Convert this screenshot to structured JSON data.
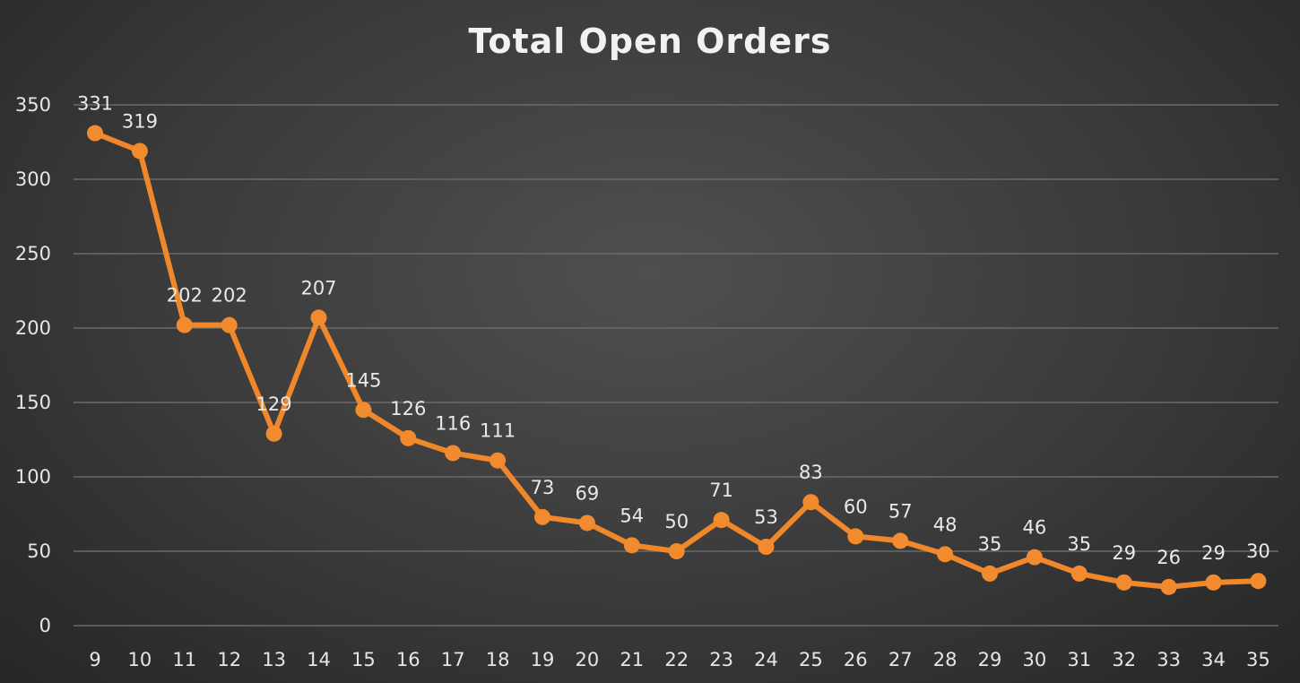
{
  "chart_data": {
    "type": "line",
    "title": "Total Open Orders",
    "xlabel": "",
    "ylabel": "",
    "categories": [
      "9",
      "10",
      "11",
      "12",
      "13",
      "14",
      "15",
      "16",
      "17",
      "18",
      "19",
      "20",
      "21",
      "22",
      "23",
      "24",
      "25",
      "26",
      "27",
      "28",
      "29",
      "30",
      "31",
      "32",
      "33",
      "34",
      "35"
    ],
    "series": [
      {
        "values": [
          331,
          319,
          202,
          202,
          129,
          207,
          145,
          126,
          116,
          111,
          73,
          69,
          54,
          50,
          71,
          53,
          83,
          60,
          57,
          48,
          35,
          46,
          35,
          29,
          26,
          29,
          30
        ]
      }
    ],
    "data_labels": [
      "331",
      "319",
      "202",
      "202",
      "129",
      "207",
      "145",
      "126",
      "116",
      "111",
      "73",
      "69",
      "54",
      "50",
      "71",
      "53",
      "83",
      "60",
      "57",
      "48",
      "35",
      "46",
      "35",
      "29",
      "26",
      "29",
      "30"
    ],
    "ylim": [
      0,
      350
    ],
    "yticks": [
      "0",
      "50",
      "100",
      "150",
      "200",
      "250",
      "300",
      "350"
    ],
    "grid": true,
    "legend": "none",
    "colors": {
      "line": "#f0872b",
      "marker": "#f28a2e",
      "grid": "#6a6a6a"
    }
  }
}
